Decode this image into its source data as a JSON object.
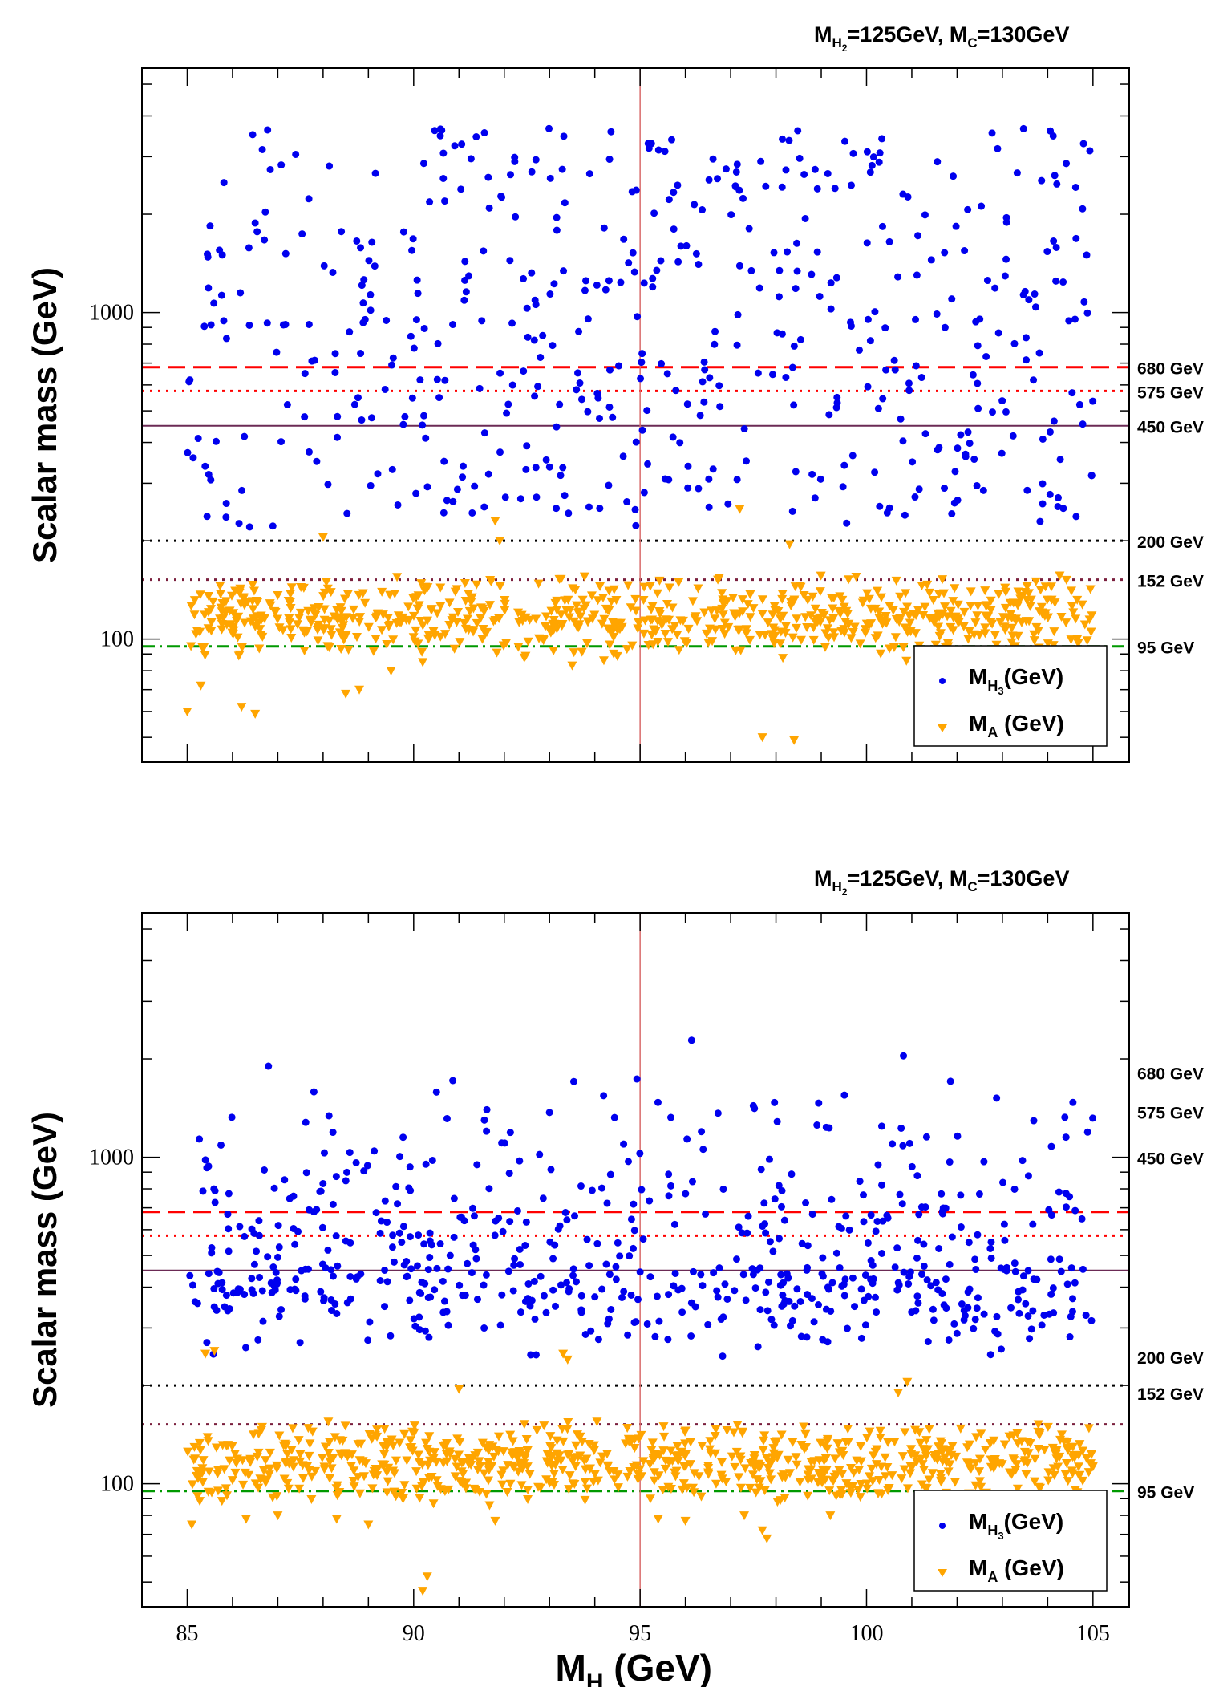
{
  "chart_data": [
    {
      "type": "scatter",
      "title": "M_{H_2}=125GeV, M_C=130GeV",
      "title_parts": {
        "a": "M",
        "a_sub": "H",
        "a_subsub": "2",
        "b": "=125GeV, M",
        "b_sub": "C",
        "c": "=130GeV"
      },
      "ylabel": "Scalar mass (GeV)",
      "xlabel": "",
      "xlim": [
        84.0,
        105.8
      ],
      "ylim": [
        42,
        5600
      ],
      "yscale": "log",
      "x_ticks": [],
      "y_tick_labels": [
        "100",
        "1000"
      ],
      "grid": false,
      "legend_position": "bottom-right",
      "vertical_line_x": 95,
      "reference_lines": [
        {
          "label": "680 GeV",
          "y": 680,
          "style": "dashed",
          "color": "#ff0000"
        },
        {
          "label": "575 GeV",
          "y": 575,
          "style": "dotted",
          "color": "#ff0000"
        },
        {
          "label": "450 GeV",
          "y": 450,
          "style": "solid",
          "color": "#6b2a55"
        },
        {
          "label": "200 GeV",
          "y": 200,
          "style": "dotted",
          "color": "#000000"
        },
        {
          "label": "152 GeV",
          "y": 152,
          "style": "dotted",
          "color": "#7a1f3d"
        },
        {
          "label": "95 GeV",
          "y": 95,
          "style": "dashdot",
          "color": "#009900"
        }
      ],
      "series": [
        {
          "name": "M_{H_3}(GeV)",
          "legend_main": "M",
          "legend_sub": "H",
          "legend_subsub": "3",
          "legend_rest": "(GeV)",
          "marker": "circle",
          "color": "#0000ee",
          "n": 520,
          "x_range": [
            85,
            105
          ],
          "y_log_range": [
            220,
            3700
          ],
          "seed": 11
        },
        {
          "name": "M_A (GeV)",
          "legend_main": "M",
          "legend_sub": "A",
          "legend_subsub": "",
          "legend_rest": " (GeV)",
          "marker": "triangle-down",
          "color": "#ffa500",
          "n": 720,
          "x_range": [
            85,
            105
          ],
          "y_log_range": [
            85,
            160
          ],
          "seed": 23,
          "outliers": [
            [
              85.0,
              60
            ],
            [
              85.3,
              72
            ],
            [
              86.2,
              62
            ],
            [
              86.5,
              59
            ],
            [
              88.5,
              68
            ],
            [
              88.8,
              70
            ],
            [
              89.5,
              80
            ],
            [
              90.2,
              85
            ],
            [
              91.9,
              200
            ],
            [
              91.8,
              230
            ],
            [
              93.5,
              83
            ],
            [
              94.2,
              86
            ],
            [
              97.7,
              50
            ],
            [
              98.4,
              49
            ],
            [
              101.6,
              70
            ],
            [
              102.2,
              80
            ],
            [
              102.6,
              72
            ],
            [
              97.2,
              250
            ],
            [
              98.3,
              195
            ],
            [
              88.0,
              205
            ]
          ]
        }
      ]
    },
    {
      "type": "scatter",
      "title": "M_{H_2}=125GeV, M_C=130GeV",
      "title_parts": {
        "a": "M",
        "a_sub": "H",
        "a_subsub": "2",
        "b": "=125GeV, M",
        "b_sub": "C",
        "c": "=130GeV"
      },
      "ylabel": "Scalar mass (GeV)",
      "xlabel": "M_H (GeV)",
      "xlabel_parts": {
        "main": "M",
        "sub": "H",
        "rest": " (GeV)"
      },
      "xlim": [
        84.0,
        105.8
      ],
      "ylim": [
        42,
        5600
      ],
      "yscale": "log",
      "x_ticks": [
        "85",
        "90",
        "95",
        "100",
        "105"
      ],
      "y_tick_labels": [
        "100",
        "1000"
      ],
      "grid": false,
      "legend_position": "bottom-right",
      "vertical_line_x": 95,
      "reference_lines": [
        {
          "label": "680 GeV",
          "y": 680,
          "style": "dashed",
          "color": "#ff0000",
          "label_y": 1820
        },
        {
          "label": "575 GeV",
          "y": 575,
          "style": "dotted",
          "color": "#ff0000",
          "label_y": 1380
        },
        {
          "label": "450 GeV",
          "y": 450,
          "style": "solid",
          "color": "#6b2a55",
          "label_y": 1000
        },
        {
          "label": "200 GeV",
          "y": 200,
          "style": "dotted",
          "color": "#000000",
          "label_y": 245
        },
        {
          "label": "152 GeV",
          "y": 152,
          "style": "dotted",
          "color": "#7a1f3d",
          "label_y": 190
        },
        {
          "label": "95 GeV",
          "y": 95,
          "style": "dashdot",
          "color": "#009900",
          "label_y": 95
        }
      ],
      "series": [
        {
          "name": "M_{H_3}(GeV)",
          "legend_main": "M",
          "legend_sub": "H",
          "legend_subsub": "3",
          "legend_rest": "(GeV)",
          "marker": "circle",
          "color": "#0000ee",
          "n": 640,
          "x_range": [
            85,
            105
          ],
          "y_log_range": [
            200,
            2600
          ],
          "center": 470,
          "seed": 37
        },
        {
          "name": "M_A (GeV)",
          "legend_main": "M",
          "legend_sub": "A",
          "legend_subsub": "",
          "legend_rest": " (GeV)",
          "marker": "triangle-down",
          "color": "#ffa500",
          "n": 760,
          "x_range": [
            85,
            105
          ],
          "y_log_range": [
            85,
            160
          ],
          "seed": 53,
          "outliers": [
            [
              85.4,
              250
            ],
            [
              85.6,
              255
            ],
            [
              85.1,
              75
            ],
            [
              86.3,
              78
            ],
            [
              87.0,
              80
            ],
            [
              89.0,
              75
            ],
            [
              90.3,
              52
            ],
            [
              90.2,
              47
            ],
            [
              91.0,
              195
            ],
            [
              91.8,
              77
            ],
            [
              93.3,
              250
            ],
            [
              93.4,
              240
            ],
            [
              95.4,
              78
            ],
            [
              96.0,
              77
            ],
            [
              97.3,
              80
            ],
            [
              97.7,
              72
            ],
            [
              97.8,
              68
            ],
            [
              99.2,
              80
            ],
            [
              100.7,
              190
            ],
            [
              100.9,
              205
            ],
            [
              102.5,
              78
            ],
            [
              88.3,
              78
            ]
          ]
        }
      ]
    }
  ]
}
